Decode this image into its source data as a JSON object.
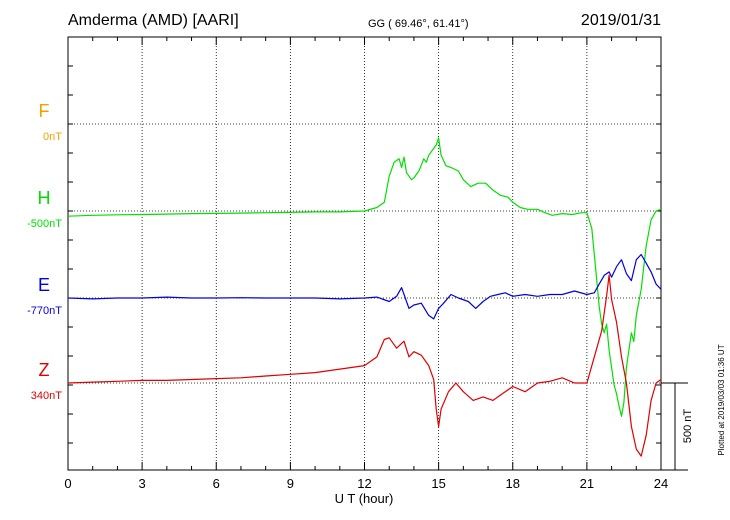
{
  "header": {
    "station": "Amderma (AMD)  [AARI]",
    "coords": "GG ( 69.46°,  61.41°)",
    "date": "2019/01/31"
  },
  "footer_note": "Plotted at 2019/03/03 01:36 UT",
  "chart_data": {
    "type": "line",
    "xlabel": "U T (hour)",
    "xlim": [
      0,
      24
    ],
    "xticks": [
      "0",
      "3",
      "6",
      "9",
      "12",
      "15",
      "18",
      "21",
      "24"
    ],
    "scale_label": "500 nT",
    "series": [
      {
        "name": "F",
        "baseline": "0nT",
        "color": "#f0a000",
        "baseline_index": 0,
        "x": [],
        "y": []
      },
      {
        "name": "H",
        "baseline": "-500nT",
        "color": "#00e000",
        "baseline_index": 1,
        "x": [
          0,
          1,
          2,
          3,
          4,
          5,
          6,
          7,
          8,
          9,
          10,
          11,
          12,
          12.5,
          12.8,
          13.0,
          13.2,
          13.4,
          13.5,
          13.6,
          13.7,
          13.8,
          13.9,
          14.0,
          14.2,
          14.4,
          14.5,
          14.6,
          14.8,
          14.9,
          15.0,
          15.1,
          15.3,
          15.5,
          15.8,
          16.0,
          16.3,
          16.6,
          16.9,
          17.2,
          17.5,
          17.8,
          18.0,
          18.3,
          18.6,
          19.0,
          19.3,
          19.6,
          20.0,
          20.4,
          20.8,
          21.0,
          21.2,
          21.4,
          21.5,
          21.6,
          21.7,
          21.8,
          21.9,
          22.0,
          22.1,
          22.2,
          22.3,
          22.4,
          22.5,
          22.6,
          22.7,
          22.8,
          22.9,
          23.0,
          23.2,
          23.4,
          23.6,
          23.8,
          24.0
        ],
        "y": [
          -30,
          -25,
          -22,
          -20,
          -18,
          -15,
          -14,
          -12,
          -10,
          -8,
          -5,
          -5,
          0,
          20,
          50,
          200,
          280,
          300,
          250,
          310,
          220,
          200,
          180,
          190,
          230,
          300,
          280,
          320,
          360,
          380,
          420,
          320,
          260,
          250,
          230,
          180,
          140,
          160,
          160,
          120,
          90,
          80,
          50,
          20,
          10,
          10,
          -10,
          -25,
          -15,
          -20,
          -10,
          -10,
          -100,
          -400,
          -550,
          -650,
          -700,
          -650,
          -800,
          -900,
          -1000,
          -1050,
          -1120,
          -1180,
          -1100,
          -900,
          -800,
          -700,
          -750,
          -600,
          -450,
          -200,
          -50,
          0,
          10
        ]
      },
      {
        "name": "E",
        "baseline": "-770nT",
        "color": "#0000e0",
        "baseline_index": 2,
        "x": [
          0,
          1,
          2,
          3,
          4,
          5,
          6,
          7,
          8,
          9,
          10,
          11,
          12,
          12.5,
          13.0,
          13.3,
          13.5,
          13.7,
          13.8,
          14.0,
          14.3,
          14.6,
          14.8,
          15.0,
          15.2,
          15.5,
          15.8,
          16.2,
          16.5,
          16.8,
          17.1,
          17.4,
          17.7,
          18.0,
          18.5,
          19.0,
          19.5,
          20.0,
          20.5,
          21.0,
          21.3,
          21.5,
          21.7,
          21.9,
          22.0,
          22.2,
          22.4,
          22.6,
          22.8,
          23.0,
          23.2,
          23.4,
          23.6,
          23.8,
          24.0
        ],
        "y": [
          0,
          -5,
          0,
          0,
          5,
          0,
          0,
          2,
          0,
          0,
          0,
          -5,
          0,
          5,
          -20,
          10,
          60,
          -20,
          -60,
          -40,
          -30,
          -100,
          -120,
          -60,
          -30,
          20,
          0,
          -20,
          -60,
          -20,
          10,
          20,
          30,
          10,
          20,
          10,
          20,
          20,
          40,
          20,
          30,
          80,
          130,
          150,
          120,
          180,
          220,
          140,
          100,
          220,
          250,
          200,
          150,
          80,
          50
        ]
      },
      {
        "name": "Z",
        "baseline": "340nT",
        "color": "#e00000",
        "baseline_index": 3,
        "x": [
          0,
          1,
          2,
          3,
          4,
          5,
          6,
          7,
          8,
          9,
          10,
          11,
          12,
          12.5,
          12.8,
          13.0,
          13.3,
          13.6,
          13.8,
          14.0,
          14.3,
          14.6,
          14.8,
          14.9,
          15.0,
          15.1,
          15.4,
          15.7,
          16.0,
          16.4,
          16.8,
          17.2,
          17.6,
          18.0,
          18.5,
          19.0,
          19.5,
          20.0,
          20.5,
          21.0,
          21.3,
          21.6,
          21.8,
          21.9,
          22.0,
          22.2,
          22.4,
          22.6,
          22.8,
          23.0,
          23.2,
          23.4,
          23.6,
          23.8,
          24.0
        ],
        "y": [
          0,
          5,
          10,
          15,
          15,
          20,
          25,
          30,
          40,
          50,
          60,
          80,
          100,
          150,
          250,
          260,
          200,
          240,
          150,
          180,
          160,
          100,
          20,
          -150,
          -250,
          -150,
          -50,
          0,
          -50,
          -100,
          -80,
          -100,
          -60,
          -20,
          -50,
          0,
          10,
          30,
          0,
          0,
          150,
          300,
          500,
          620,
          480,
          350,
          150,
          0,
          -250,
          -380,
          -420,
          -300,
          -100,
          0,
          20
        ]
      }
    ]
  }
}
